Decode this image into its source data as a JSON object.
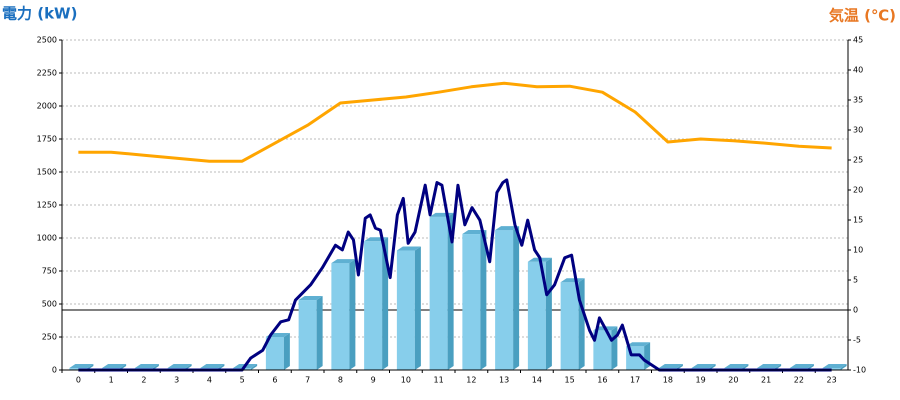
{
  "chart_data": {
    "type": "bar",
    "y_label": "電力 (kW)",
    "y2_label": "気温 (℃)",
    "categories": [
      "0",
      "1",
      "2",
      "3",
      "4",
      "5",
      "6",
      "7",
      "8",
      "9",
      "10",
      "11",
      "12",
      "13",
      "14",
      "15",
      "16",
      "17",
      "18",
      "19",
      "20",
      "21",
      "22",
      "23"
    ],
    "ylim": [
      0,
      2500
    ],
    "yticks": [
      0,
      250,
      500,
      750,
      1000,
      1250,
      1500,
      1750,
      2000,
      2250,
      2500
    ],
    "y2lim": [
      -10,
      45
    ],
    "y2ticks": [
      -10,
      -5,
      0,
      5,
      10,
      15,
      20,
      25,
      30,
      35,
      40,
      45
    ],
    "grid": true,
    "series": [
      {
        "type": "bar",
        "color": "#87ceeb",
        "values": [
          15,
          15,
          15,
          15,
          15,
          15,
          250,
          530,
          810,
          975,
          905,
          1160,
          1030,
          1060,
          820,
          665,
          300,
          180,
          15,
          15,
          15,
          15,
          15,
          15
        ]
      },
      {
        "type": "line",
        "color": "#000080",
        "x": [
          0,
          5,
          5.26,
          5.63,
          5.87,
          6.18,
          6.42,
          6.63,
          7.09,
          7.45,
          7.85,
          8.06,
          8.24,
          8.4,
          8.55,
          8.76,
          8.91,
          9.07,
          9.22,
          9.52,
          9.74,
          9.92,
          10.07,
          10.28,
          10.59,
          10.74,
          10.95,
          11.1,
          11.41,
          11.59,
          11.8,
          12.02,
          12.26,
          12.56,
          12.78,
          12.96,
          13.08,
          13.33,
          13.54,
          13.72,
          13.93,
          14.09,
          14.3,
          14.54,
          14.85,
          15.06,
          15.3,
          15.61,
          15.76,
          15.91,
          16.12,
          16.28,
          16.46,
          16.61,
          16.88,
          17.13,
          17.28,
          17.74,
          23
        ],
        "values": [
          0,
          0,
          90,
          150,
          265,
          365,
          380,
          530,
          645,
          775,
          945,
          910,
          1045,
          985,
          720,
          1150,
          1175,
          1075,
          1060,
          700,
          1175,
          1300,
          960,
          1045,
          1400,
          1175,
          1420,
          1400,
          970,
          1400,
          1100,
          1230,
          1135,
          820,
          1345,
          1420,
          1440,
          1100,
          945,
          1135,
          910,
          850,
          570,
          645,
          850,
          870,
          530,
          300,
          225,
          395,
          300,
          225,
          265,
          340,
          115,
          115,
          75,
          0,
          0
        ]
      },
      {
        "type": "line",
        "color": "#ffa500",
        "axis": "y2",
        "values": [
          26.3,
          26.3,
          25.8,
          25.3,
          24.8,
          24.8,
          27.8,
          30.8,
          34.5,
          35,
          35.5,
          36.3,
          37.2,
          37.8,
          37.2,
          37.3,
          36.3,
          33,
          28,
          28.5,
          28.2,
          27.8,
          27.3,
          27
        ]
      }
    ]
  }
}
